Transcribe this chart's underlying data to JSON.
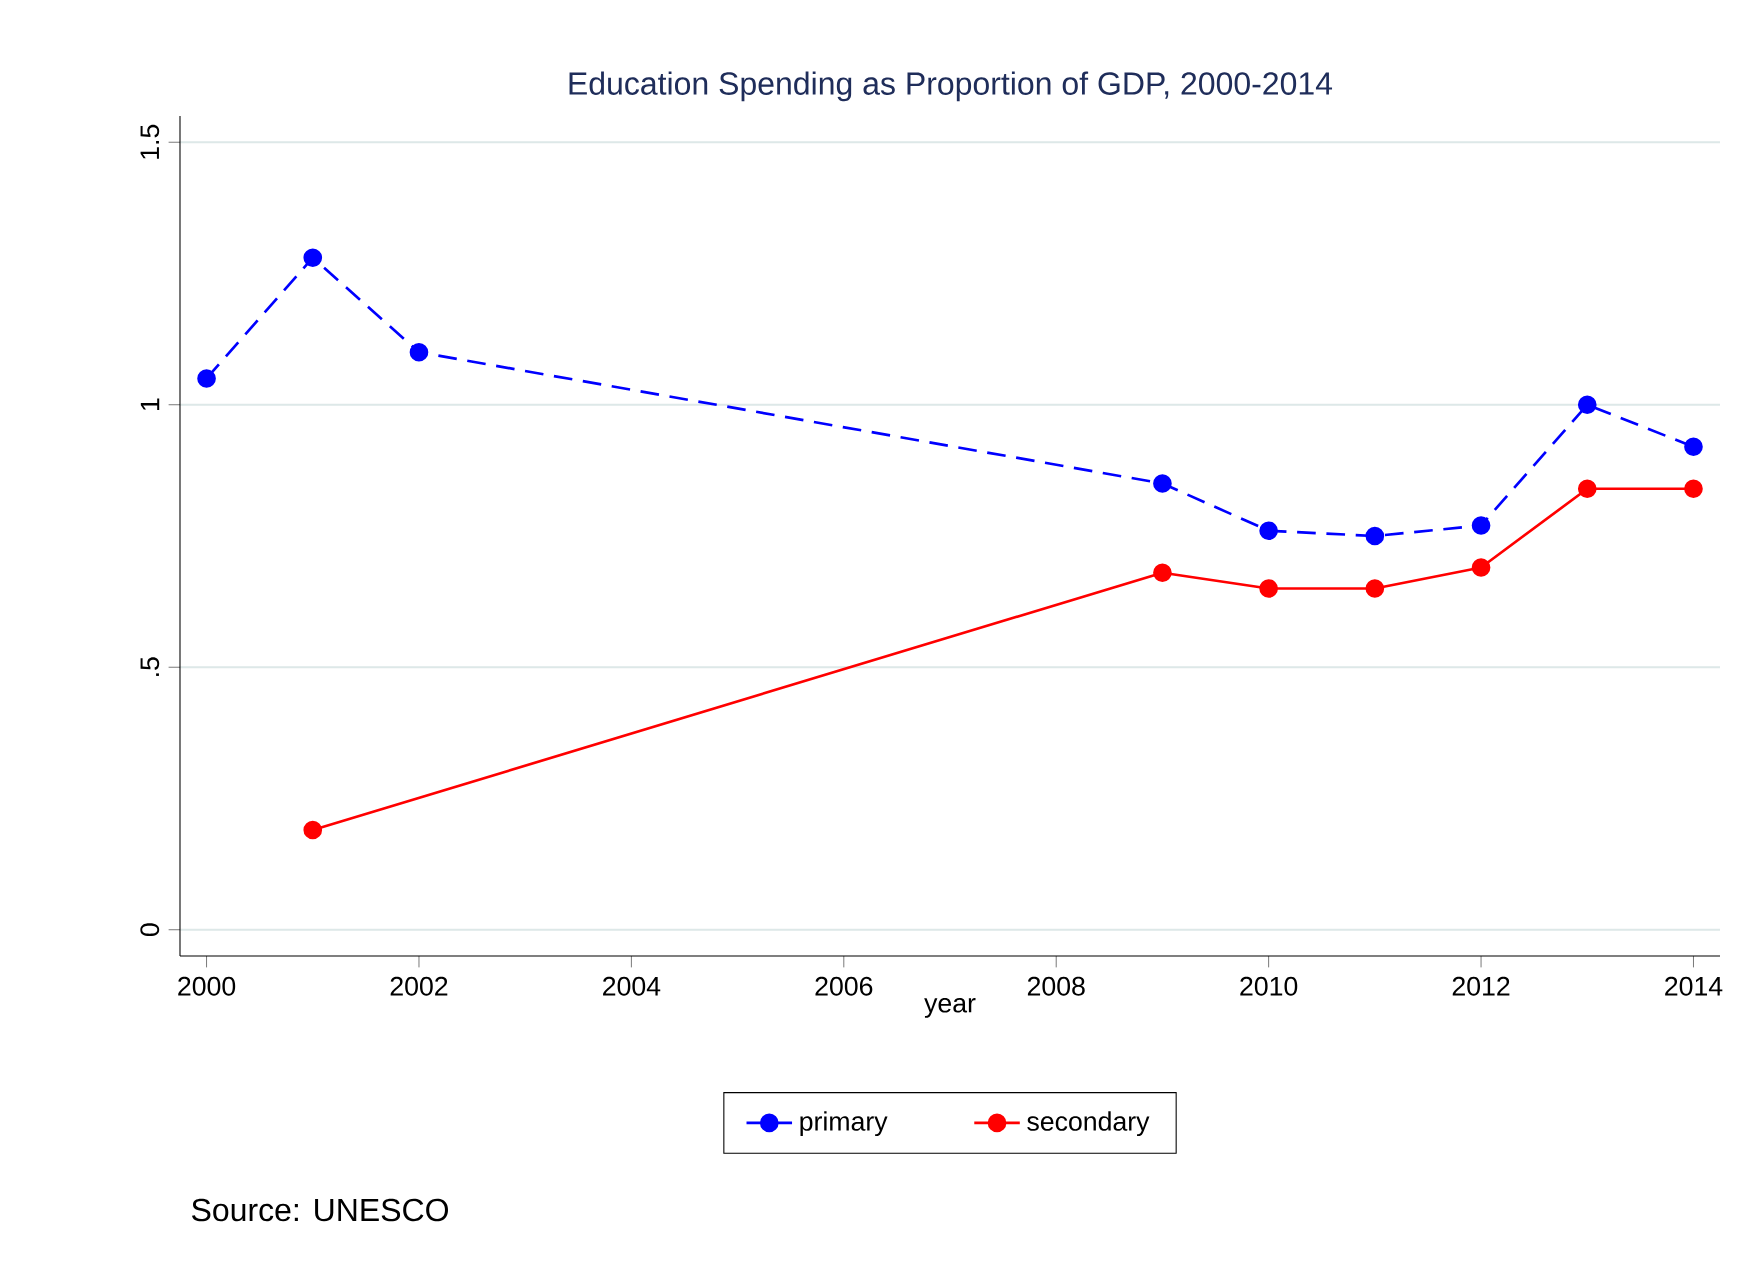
{
  "chart_data": {
    "type": "line",
    "title": "Education Spending as Proportion of GDP, 2000-2014",
    "xlabel": "year",
    "xlim": [
      1999.75,
      2014.25
    ],
    "xticks": [
      2000,
      2002,
      2004,
      2006,
      2008,
      2010,
      2012,
      2014
    ],
    "ylim": [
      -0.05,
      1.55
    ],
    "yticks": [
      0,
      {
        "value": 0.5,
        "label": ".5"
      },
      1,
      1.5
    ],
    "grid": "y",
    "legend": "bottom",
    "marker": "circle",
    "series": [
      {
        "name": "primary",
        "color": "#0000ff",
        "line_style": "dashed",
        "x": [
          2000,
          2001,
          2002,
          2009,
          2010,
          2011,
          2012,
          2013,
          2014
        ],
        "values": [
          1.05,
          1.28,
          1.1,
          0.85,
          0.76,
          0.75,
          0.77,
          1.0,
          0.92
        ]
      },
      {
        "name": "secondary",
        "color": "#ff0000",
        "line_style": "solid",
        "x": [
          2001,
          2009,
          2010,
          2011,
          2012,
          2013,
          2014
        ],
        "values": [
          0.19,
          0.68,
          0.65,
          0.65,
          0.69,
          0.84,
          0.84
        ]
      }
    ],
    "annotations": [
      "Source: UNESCO"
    ]
  }
}
